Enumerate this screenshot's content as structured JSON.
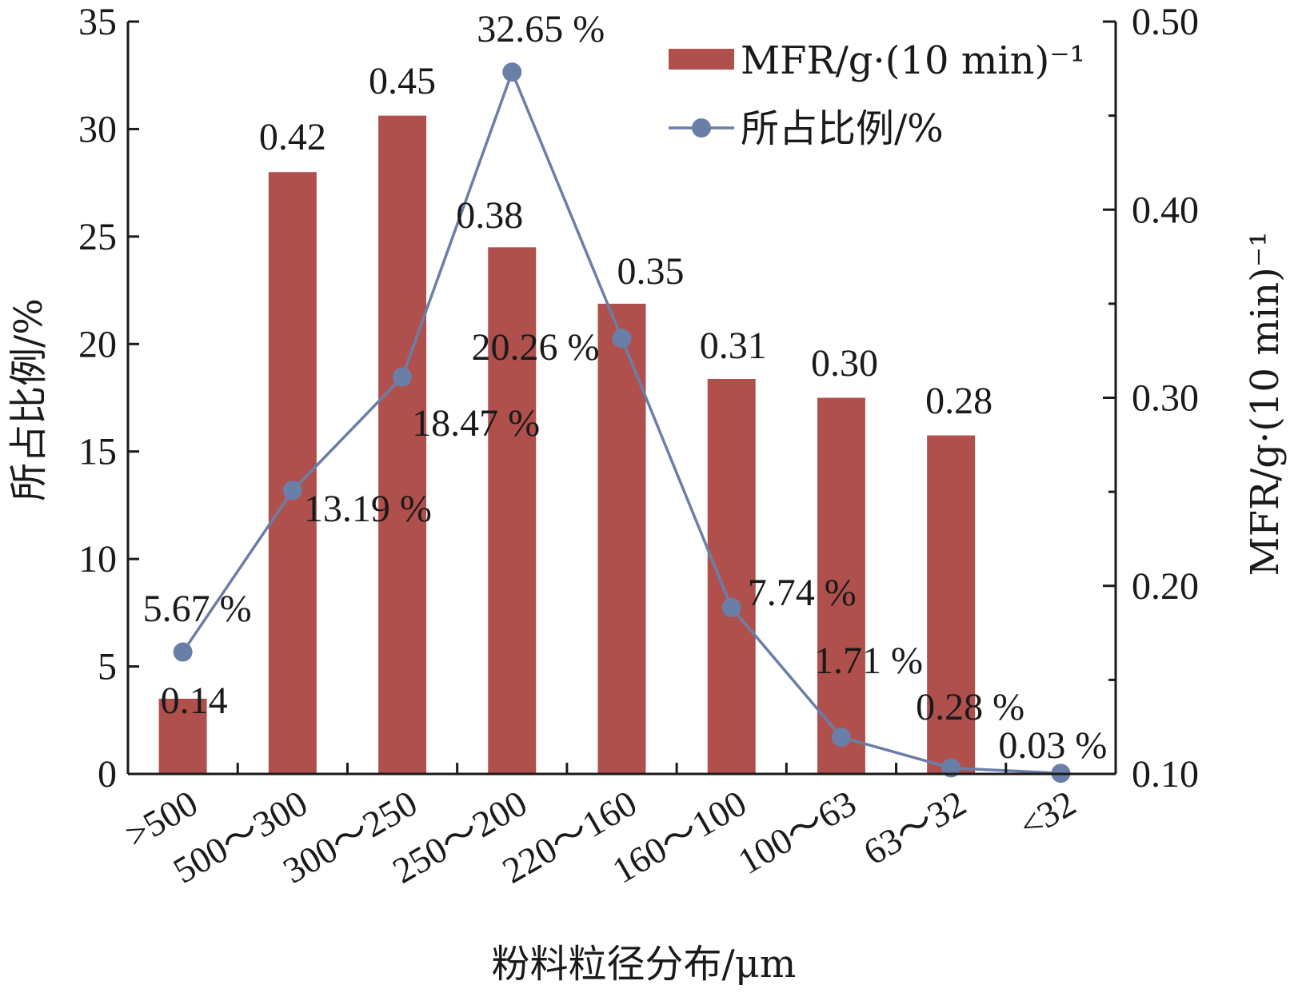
{
  "chart_data": {
    "type": "bar",
    "categories": [
      ">500",
      "500～300",
      "300～250",
      "250～200",
      "220～160",
      "160～100",
      "100～63",
      "63～32",
      "<32"
    ],
    "xlabel": "粉料粒径分布/μm",
    "ylabel_left": "所占比例/%",
    "ylabel_right": "MFR/g·(10 min)⁻¹",
    "ylim_left": [
      0,
      35
    ],
    "yticks_left": [
      "0",
      "5",
      "10",
      "15",
      "20",
      "25",
      "30",
      "35"
    ],
    "ylim_right": [
      0.1,
      0.5
    ],
    "yticks_right": [
      "0.10",
      "0.20",
      "0.30",
      "0.40",
      "0.50"
    ],
    "series": [
      {
        "name": "MFR/g·(10 min)⁻¹",
        "type": "bar",
        "axis": "right",
        "color": "#b0504d",
        "values": [
          0.14,
          0.42,
          0.45,
          0.38,
          0.35,
          0.31,
          0.3,
          0.28,
          null
        ],
        "labels": [
          "0.14",
          "0.42",
          "0.45",
          "0.38",
          "0.35",
          "0.31",
          "0.30",
          "0.28",
          ""
        ]
      },
      {
        "name": "所占比例/%",
        "type": "line",
        "axis": "left",
        "color": "#6a7fa8",
        "values": [
          5.67,
          13.19,
          18.47,
          32.65,
          20.26,
          7.74,
          1.71,
          0.28,
          0.03
        ],
        "labels": [
          "5.67 %",
          "13.19 %",
          "18.47 %",
          "32.65 %",
          "20.26 %",
          "7.74 %",
          "1.71 %",
          "0.28 %",
          "0.03 %"
        ]
      }
    ],
    "legend": {
      "position": "top-right"
    },
    "grid": false
  }
}
